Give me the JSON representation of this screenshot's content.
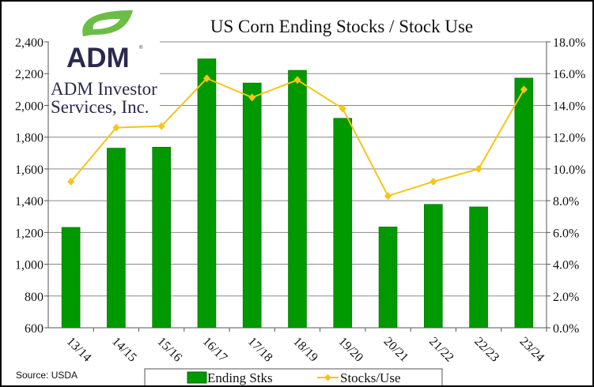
{
  "chart_data": {
    "type": "bar+line",
    "title": "US Corn Ending Stocks / Stock Use",
    "categories": [
      "13/14",
      "14/15",
      "15/16",
      "16/17",
      "17/18",
      "18/19",
      "19/20",
      "20/21",
      "21/22",
      "22/23",
      "23/24"
    ],
    "series": [
      {
        "name": "Ending Stks",
        "type": "bar",
        "axis": "left",
        "color": "#009900",
        "values": [
          1232,
          1731,
          1737,
          2293,
          2141,
          2221,
          1919,
          1235,
          1377,
          1361,
          2172
        ]
      },
      {
        "name": "Stocks/Use",
        "type": "line",
        "axis": "right",
        "color": "#f5c518",
        "values": [
          9.2,
          12.6,
          12.7,
          15.7,
          14.5,
          15.6,
          13.8,
          8.3,
          9.2,
          10.0,
          15.0
        ]
      }
    ],
    "left_axis": {
      "ylim": [
        600,
        2400
      ],
      "ticks": [
        "600",
        "800",
        "1,000",
        "1,200",
        "1,400",
        "1,600",
        "1,800",
        "2,000",
        "2,200",
        "2,400"
      ]
    },
    "right_axis": {
      "ylim": [
        0,
        18
      ],
      "ticks": [
        "0.0%",
        "2.0%",
        "4.0%",
        "6.0%",
        "8.0%",
        "10.0%",
        "12.0%",
        "14.0%",
        "16.0%",
        "18.0%"
      ]
    },
    "grid": true,
    "legend_placement": "bottom"
  },
  "source": "Source: USDA",
  "logo": {
    "brand": "ADM",
    "name_line1": "ADM Investor",
    "name_line2": "Services, Inc.",
    "green": "#6cbd45",
    "navy": "#2b2a4c"
  }
}
